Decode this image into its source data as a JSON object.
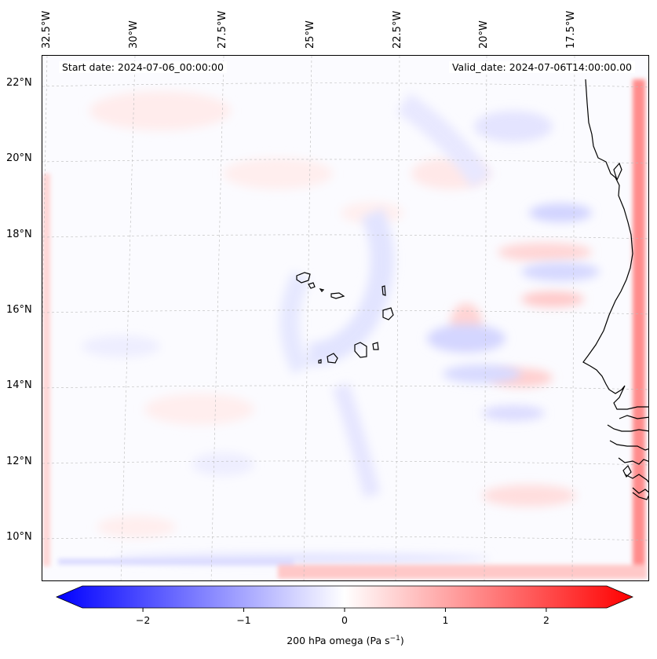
{
  "map": {
    "start_date": "Start date: 2024-07-06_00:00:00",
    "valid_date": "Valid_date: 2024-07-06T14:00:00.00",
    "lon_labels": [
      "32.5°W",
      "30°W",
      "27.5°W",
      "25°W",
      "22.5°W",
      "20°W",
      "17.5°W"
    ],
    "lat_labels": [
      "22°N",
      "20°N",
      "18°N",
      "16°N",
      "14°N",
      "12°N",
      "10°N"
    ],
    "field": "200 hPa omega",
    "colormap": "bwr",
    "colors": {
      "negative": "#0000ff",
      "zero": "#ffffff",
      "positive": "#ff0000",
      "coastline": "#000000"
    }
  },
  "colorbar": {
    "label_prefix": "200 hPa omega (Pa s",
    "label_exp": "−1",
    "label_suffix": ")",
    "ticks": [
      "−2",
      "−1",
      "0",
      "1",
      "2"
    ],
    "tick_values": [
      -2,
      -1,
      0,
      1,
      2
    ],
    "range": [
      -2.6,
      2.6
    ],
    "extend": "both"
  }
}
